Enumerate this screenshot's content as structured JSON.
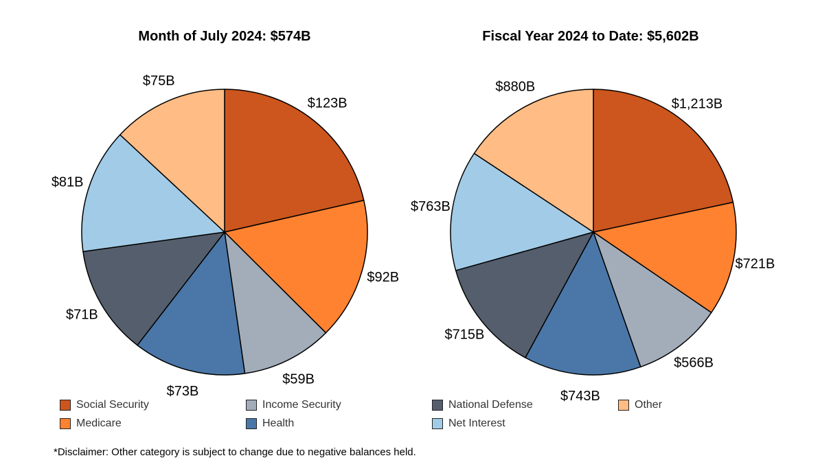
{
  "chart_data": [
    {
      "type": "pie",
      "title": "Month of July 2024: $574B",
      "slices": [
        {
          "category": "Social Security",
          "value": 123,
          "label": "$123B"
        },
        {
          "category": "Medicare",
          "value": 92,
          "label": "$92B"
        },
        {
          "category": "Income Security",
          "value": 59,
          "label": "$59B"
        },
        {
          "category": "Health",
          "value": 73,
          "label": "$73B"
        },
        {
          "category": "National Defense",
          "value": 71,
          "label": "$71B"
        },
        {
          "category": "Net Interest",
          "value": 81,
          "label": "$81B"
        },
        {
          "category": "Other",
          "value": 75,
          "label": "$75B"
        }
      ]
    },
    {
      "type": "pie",
      "title": "Fiscal Year 2024 to Date: $5,602B",
      "slices": [
        {
          "category": "Social Security",
          "value": 1213,
          "label": "$1,213B"
        },
        {
          "category": "Medicare",
          "value": 721,
          "label": "$721B"
        },
        {
          "category": "Income Security",
          "value": 566,
          "label": "$566B"
        },
        {
          "category": "Health",
          "value": 743,
          "label": "$743B"
        },
        {
          "category": "National Defense",
          "value": 715,
          "label": "$715B"
        },
        {
          "category": "Net Interest",
          "value": 763,
          "label": "$763B"
        },
        {
          "category": "Other",
          "value": 880,
          "label": "$880B"
        }
      ]
    }
  ],
  "legend": [
    {
      "name": "Social Security",
      "color": "#cc561e"
    },
    {
      "name": "Medicare",
      "color": "#ff8230"
    },
    {
      "name": "Income Security",
      "color": "#a3acb9"
    },
    {
      "name": "Health",
      "color": "#4a77a8"
    },
    {
      "name": "National Defense",
      "color": "#555e6d"
    },
    {
      "name": "Net Interest",
      "color": "#a1cbe6"
    },
    {
      "name": "Other",
      "color": "#ffbc84"
    }
  ],
  "disclaimer": "*Disclaimer: Other category is subject to change due to negative balances held."
}
